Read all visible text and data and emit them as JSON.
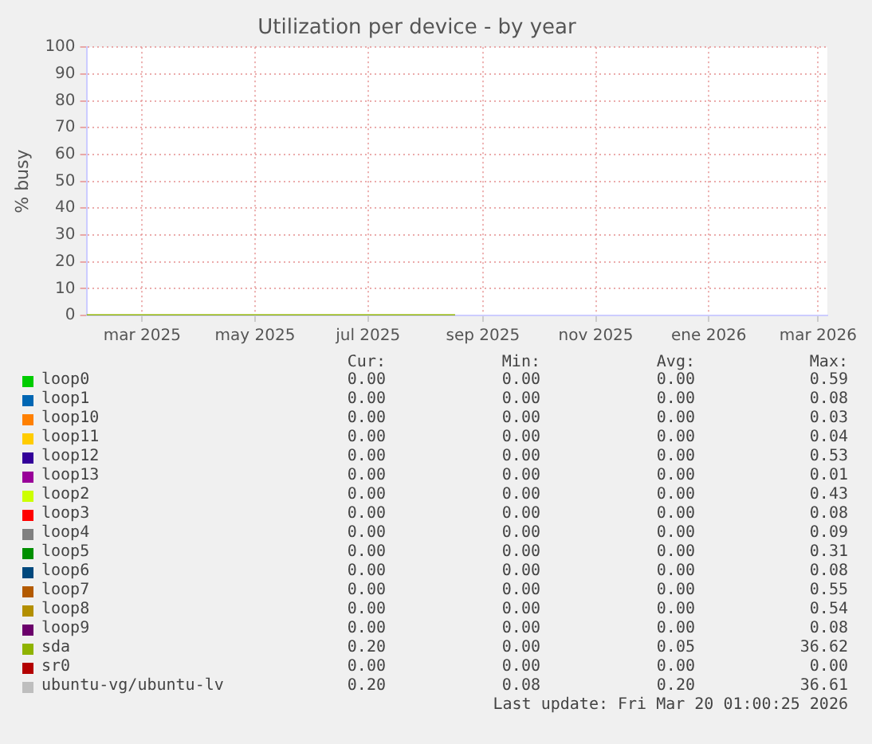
{
  "chart_data": {
    "type": "line",
    "title": "Utilization per device - by year",
    "ylabel": "% busy",
    "xlim": [
      "2025-02-13",
      "2026-03-20"
    ],
    "xticks": [
      {
        "value": "2025-03-15",
        "label": "mar 2025"
      },
      {
        "value": "2025-05-15",
        "label": "may 2025"
      },
      {
        "value": "2025-07-15",
        "label": "jul 2025"
      },
      {
        "value": "2025-09-15",
        "label": "sep 2025"
      },
      {
        "value": "2025-11-15",
        "label": "nov 2025"
      },
      {
        "value": "2026-01-15",
        "label": "ene 2026"
      },
      {
        "value": "2026-03-15",
        "label": "mar 2026"
      }
    ],
    "ylim": [
      0,
      100
    ],
    "yticks": [
      0,
      10,
      20,
      30,
      40,
      50,
      60,
      70,
      80,
      90,
      100
    ],
    "grid": true,
    "legend": "bottom",
    "marker": "none",
    "line_style": "solid",
    "series": [
      {
        "name": "loop0",
        "color": "#00cc00"
      },
      {
        "name": "loop1",
        "color": "#0066b3"
      },
      {
        "name": "loop10",
        "color": "#ff8000"
      },
      {
        "name": "loop11",
        "color": "#ffcc00"
      },
      {
        "name": "loop12",
        "color": "#330099"
      },
      {
        "name": "loop13",
        "color": "#990099"
      },
      {
        "name": "loop2",
        "color": "#ccff00"
      },
      {
        "name": "loop3",
        "color": "#ff0000"
      },
      {
        "name": "loop4",
        "color": "#808080"
      },
      {
        "name": "loop5",
        "color": "#008f00"
      },
      {
        "name": "loop6",
        "color": "#00487d"
      },
      {
        "name": "loop7",
        "color": "#b35a00"
      },
      {
        "name": "loop8",
        "color": "#b38f00"
      },
      {
        "name": "loop9",
        "color": "#6b006b"
      },
      {
        "name": "sda",
        "color": "#8fb300",
        "x": [
          "2025-02-13",
          "2025-08-31"
        ],
        "values": [
          0,
          0
        ]
      },
      {
        "name": "sr0",
        "color": "#b30000"
      },
      {
        "name": "ubuntu-vg/ubuntu-lv",
        "color": "#bebebe"
      }
    ],
    "annotations": [
      "Cur:",
      "Min:",
      "Avg:",
      "Max:",
      "0.00",
      "0.00",
      "0.00",
      "0.59",
      "0.00",
      "0.00",
      "0.00",
      "0.08",
      "0.00",
      "0.00",
      "0.00",
      "0.03",
      "0.00",
      "0.00",
      "0.00",
      "0.04",
      "0.00",
      "0.00",
      "0.00",
      "0.53",
      "0.00",
      "0.00",
      "0.00",
      "0.01",
      "0.00",
      "0.00",
      "0.00",
      "0.43",
      "0.00",
      "0.00",
      "0.00",
      "0.08",
      "0.00",
      "0.00",
      "0.00",
      "0.09",
      "0.00",
      "0.00",
      "0.00",
      "0.31",
      "0.00",
      "0.00",
      "0.00",
      "0.08",
      "0.00",
      "0.00",
      "0.00",
      "0.55",
      "0.00",
      "0.00",
      "0.00",
      "0.54",
      "0.00",
      "0.00",
      "0.00",
      "0.08",
      "0.20",
      "0.00",
      "0.05",
      "36.62",
      "0.00",
      "0.00",
      "0.00",
      "0.00",
      "0.20",
      "0.08",
      "0.20",
      "36.61",
      "Last update: Fri Mar 20 01:00:25 2026"
    ]
  }
}
